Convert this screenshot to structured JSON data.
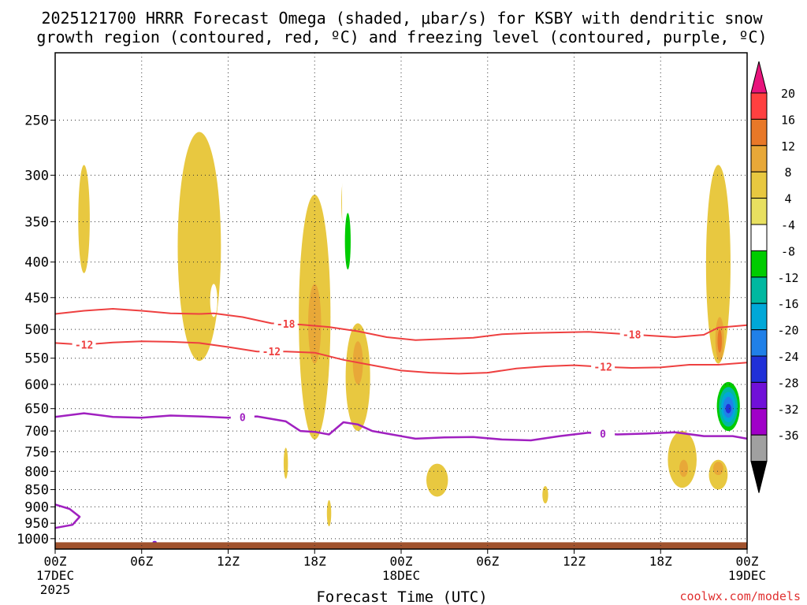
{
  "chart_data": {
    "type": "contour",
    "title_line1": "2025121700 HRRR Forecast Omega (shaded, μbar/s) for KSBY with dendritic snow",
    "title_line2": "growth region (contoured, red, ºC) and freezing level (contoured, purple, ºC)",
    "xlabel": "Forecast Time (UTC)",
    "ylabel": "Pressure (hPa)",
    "credit": "coolwx.com/models",
    "x_range_hours": [
      0,
      48
    ],
    "y_range_hpa": [
      200,
      1035
    ],
    "y_scale": "log",
    "x_ticks": [
      {
        "hour": 0,
        "label": "00Z",
        "sub1": "17DEC",
        "sub2": "2025"
      },
      {
        "hour": 6,
        "label": "06Z",
        "sub1": "",
        "sub2": ""
      },
      {
        "hour": 12,
        "label": "12Z",
        "sub1": "",
        "sub2": ""
      },
      {
        "hour": 18,
        "label": "18Z",
        "sub1": "",
        "sub2": ""
      },
      {
        "hour": 24,
        "label": "00Z",
        "sub1": "18DEC",
        "sub2": ""
      },
      {
        "hour": 30,
        "label": "06Z",
        "sub1": "",
        "sub2": ""
      },
      {
        "hour": 36,
        "label": "12Z",
        "sub1": "",
        "sub2": ""
      },
      {
        "hour": 42,
        "label": "18Z",
        "sub1": "",
        "sub2": ""
      },
      {
        "hour": 48,
        "label": "00Z",
        "sub1": "19DEC",
        "sub2": ""
      }
    ],
    "y_ticks": [
      250,
      300,
      350,
      400,
      450,
      500,
      550,
      600,
      650,
      700,
      750,
      800,
      850,
      900,
      950,
      1000
    ],
    "colorbar": {
      "levels": [
        20,
        16,
        12,
        8,
        4,
        -4,
        -8,
        -12,
        -16,
        -20,
        -24,
        -28,
        -32,
        -36
      ],
      "colors": [
        "#ff4040",
        "#e87828",
        "#e8a838",
        "#e8c840",
        "#e8e060",
        "#ffffff",
        "#00cc00",
        "#00b8a0",
        "#00a8d8",
        "#2080e8",
        "#2030d8",
        "#7010d8",
        "#a000c8",
        "#a0a0a0"
      ],
      "top_arrow_color": "#e8147c",
      "bottom_arrow_color": "#000000"
    },
    "contours": [
      {
        "name": "-18",
        "color": "#ee4040",
        "label_hours": [
          16,
          40
        ],
        "points": [
          [
            0,
            475
          ],
          [
            2,
            470
          ],
          [
            4,
            467
          ],
          [
            6,
            470
          ],
          [
            8,
            474
          ],
          [
            10,
            475
          ],
          [
            11,
            474
          ],
          [
            13,
            480
          ],
          [
            15,
            490
          ],
          [
            17,
            492
          ],
          [
            19,
            496
          ],
          [
            21,
            503
          ],
          [
            23,
            513
          ],
          [
            25,
            518
          ],
          [
            27,
            516
          ],
          [
            29,
            514
          ],
          [
            31,
            508
          ],
          [
            33,
            506
          ],
          [
            35,
            505
          ],
          [
            37,
            504
          ],
          [
            39,
            507
          ],
          [
            41,
            510
          ],
          [
            43,
            513
          ],
          [
            45,
            509
          ],
          [
            46,
            497
          ],
          [
            48,
            493
          ]
        ]
      },
      {
        "name": "-12",
        "color": "#ee4040",
        "label_hours": [
          2,
          15,
          38
        ],
        "points": [
          [
            0,
            523
          ],
          [
            2,
            526
          ],
          [
            4,
            522
          ],
          [
            6,
            520
          ],
          [
            8,
            521
          ],
          [
            10,
            523
          ],
          [
            12,
            530
          ],
          [
            14,
            538
          ],
          [
            16,
            538
          ],
          [
            18,
            540
          ],
          [
            20,
            553
          ],
          [
            22,
            563
          ],
          [
            24,
            573
          ],
          [
            26,
            577
          ],
          [
            28,
            579
          ],
          [
            30,
            577
          ],
          [
            32,
            569
          ],
          [
            34,
            565
          ],
          [
            36,
            563
          ],
          [
            38,
            566
          ],
          [
            40,
            568
          ],
          [
            42,
            567
          ],
          [
            44,
            562
          ],
          [
            46,
            562
          ],
          [
            48,
            558
          ]
        ]
      },
      {
        "name": "0",
        "color": "#a020c0",
        "label_hours": [
          13,
          38
        ],
        "points": [
          [
            0,
            668
          ],
          [
            2,
            660
          ],
          [
            4,
            668
          ],
          [
            6,
            670
          ],
          [
            8,
            665
          ],
          [
            10,
            667
          ],
          [
            12,
            670
          ],
          [
            14,
            667
          ],
          [
            16,
            678
          ],
          [
            17,
            700
          ],
          [
            18,
            702
          ],
          [
            19,
            708
          ],
          [
            20,
            680
          ],
          [
            21,
            685
          ],
          [
            22,
            700
          ],
          [
            23,
            706
          ],
          [
            25,
            718
          ],
          [
            27,
            715
          ],
          [
            29,
            714
          ],
          [
            31,
            720
          ],
          [
            33,
            722
          ],
          [
            35,
            712
          ],
          [
            37,
            704
          ],
          [
            39,
            708
          ],
          [
            41,
            706
          ],
          [
            43,
            703
          ],
          [
            45,
            712
          ],
          [
            47,
            712
          ],
          [
            48,
            718
          ]
        ]
      },
      {
        "name": "0-low",
        "color": "#a020c0",
        "label_hours": [],
        "points": [
          [
            0,
            893
          ],
          [
            1,
            906
          ],
          [
            1.7,
            930
          ],
          [
            1.2,
            955
          ],
          [
            0,
            965
          ]
        ]
      }
    ],
    "shaded_regions": [
      {
        "value": 5,
        "hour": 10,
        "p_top": 260,
        "p_bottom": 555,
        "width_h": 3.0
      },
      {
        "value": 5,
        "hour": 2,
        "p_top": 290,
        "p_bottom": 415,
        "width_h": 0.8
      },
      {
        "value": 5,
        "hour": 18,
        "p_top": 320,
        "p_bottom": 720,
        "width_h": 2.2
      },
      {
        "value": 9,
        "hour": 18,
        "p_top": 430,
        "p_bottom": 560,
        "width_h": 0.9
      },
      {
        "value": 5,
        "hour": 21,
        "p_top": 490,
        "p_bottom": 700,
        "width_h": 1.7
      },
      {
        "value": 9,
        "hour": 21,
        "p_top": 520,
        "p_bottom": 600,
        "width_h": 0.7
      },
      {
        "value": 5,
        "hour": 20.1,
        "p_top": 300,
        "p_bottom": 360,
        "width_h": 0.5
      },
      {
        "value": 5,
        "hour": 16,
        "p_top": 740,
        "p_bottom": 820,
        "width_h": 0.3
      },
      {
        "value": 5,
        "hour": 19,
        "p_top": 880,
        "p_bottom": 960,
        "width_h": 0.3
      },
      {
        "value": 5,
        "hour": 22,
        "p_top": 890,
        "p_bottom": 940,
        "width_h": 0.4
      },
      {
        "value": 5,
        "hour": 26.5,
        "p_top": 780,
        "p_bottom": 870,
        "width_h": 1.5
      },
      {
        "value": 5,
        "hour": 34,
        "p_top": 840,
        "p_bottom": 890,
        "width_h": 0.4
      },
      {
        "value": 5,
        "hour": 43.5,
        "p_top": 700,
        "p_bottom": 845,
        "width_h": 2.0
      },
      {
        "value": 9,
        "hour": 43.6,
        "p_top": 770,
        "p_bottom": 815,
        "width_h": 0.6
      },
      {
        "value": 5,
        "hour": 46,
        "p_top": 770,
        "p_bottom": 850,
        "width_h": 1.3
      },
      {
        "value": 9,
        "hour": 46,
        "p_top": 775,
        "p_bottom": 810,
        "width_h": 0.7
      },
      {
        "value": 5,
        "hour": 46,
        "p_top": 290,
        "p_bottom": 560,
        "width_h": 1.7
      },
      {
        "value": 9,
        "hour": 46.1,
        "p_top": 480,
        "p_bottom": 555,
        "width_h": 0.6
      },
      {
        "value": 13,
        "hour": 46.1,
        "p_top": 500,
        "p_bottom": 540,
        "width_h": 0.3
      },
      {
        "value": -5,
        "hour": 13,
        "p_top": 310,
        "p_bottom": 570,
        "width_h": 2.6
      },
      {
        "value": -5,
        "hour": 16,
        "p_top": 300,
        "p_bottom": 520,
        "width_h": 0.8
      },
      {
        "value": -5,
        "hour": 20.3,
        "p_top": 245,
        "p_bottom": 430,
        "width_h": 0.8
      },
      {
        "value": -9,
        "hour": 20.3,
        "p_top": 340,
        "p_bottom": 410,
        "width_h": 0.4
      },
      {
        "value": -5,
        "hour": 11,
        "p_top": 430,
        "p_bottom": 480,
        "width_h": 0.5
      },
      {
        "value": -5,
        "hour": 1,
        "p_top": 640,
        "p_bottom": 720,
        "width_h": 0.4
      },
      {
        "value": -5,
        "hour": 21.7,
        "p_top": 740,
        "p_bottom": 960,
        "width_h": 2.2
      },
      {
        "value": -5,
        "hour": 24.6,
        "p_top": 920,
        "p_bottom": 985,
        "width_h": 1.3
      },
      {
        "value": -5,
        "hour": 28.8,
        "p_top": 390,
        "p_bottom": 440,
        "width_h": 0.7
      },
      {
        "value": -5,
        "hour": 31.3,
        "p_top": 650,
        "p_bottom": 800,
        "width_h": 1.5
      },
      {
        "value": -5,
        "hour": 34.3,
        "p_top": 580,
        "p_bottom": 650,
        "width_h": 0.6
      },
      {
        "value": -5,
        "hour": 39.5,
        "p_top": 690,
        "p_bottom": 750,
        "width_h": 1.2
      },
      {
        "value": -5,
        "hour": 38.1,
        "p_top": 880,
        "p_bottom": 935,
        "width_h": 0.3
      },
      {
        "value": -5,
        "hour": 43,
        "p_top": 900,
        "p_bottom": 980,
        "width_h": 2.0
      },
      {
        "value": -5,
        "hour": 47.4,
        "p_top": 450,
        "p_bottom": 495,
        "width_h": 0.9
      },
      {
        "value": -5,
        "hour": 47.95,
        "p_top": 305,
        "p_bottom": 345,
        "width_h": 0.2
      },
      {
        "value": -5,
        "hour": 46.7,
        "p_top": 585,
        "p_bottom": 710,
        "width_h": 2.0
      },
      {
        "value": -9,
        "hour": 46.7,
        "p_top": 595,
        "p_bottom": 700,
        "width_h": 1.6
      },
      {
        "value": -13,
        "hour": 46.7,
        "p_top": 605,
        "p_bottom": 690,
        "width_h": 1.3
      },
      {
        "value": -17,
        "hour": 46.7,
        "p_top": 615,
        "p_bottom": 680,
        "width_h": 1.0
      },
      {
        "value": -21,
        "hour": 46.7,
        "p_top": 625,
        "p_bottom": 670,
        "width_h": 0.7
      },
      {
        "value": -25,
        "hour": 46.7,
        "p_top": 640,
        "p_bottom": 660,
        "width_h": 0.4
      },
      {
        "value": -29,
        "hour": 6.9,
        "p_top": 1010,
        "p_bottom": 1015,
        "width_h": 0.3
      }
    ],
    "surface": {
      "color": "#a0522d",
      "p_top": 1012,
      "p_bottom": 1035
    }
  }
}
